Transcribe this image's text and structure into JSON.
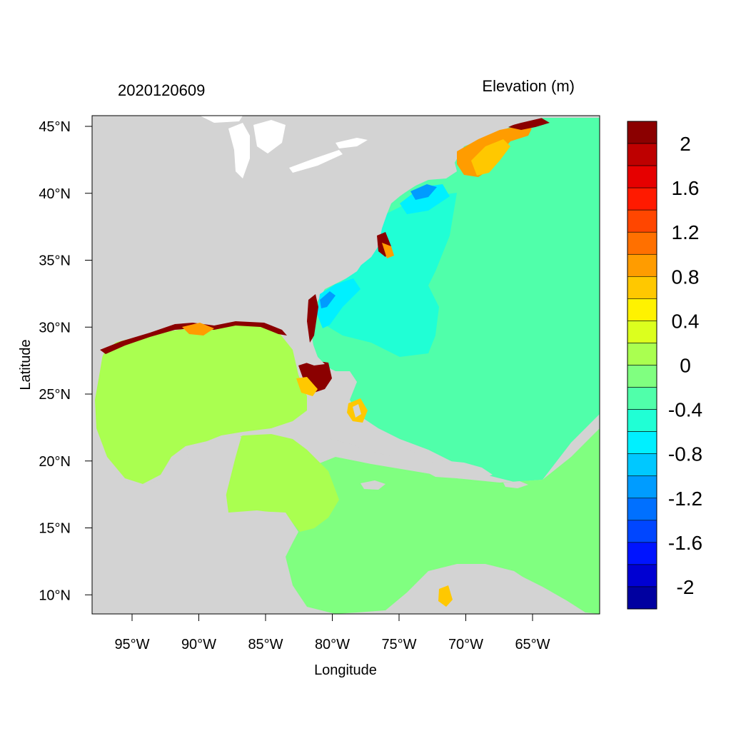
{
  "title_left": "2020120609",
  "title_right": "Elevation (m)",
  "x_axis_label": "Longitude",
  "y_axis_label": "Latitude",
  "x_ticks": [
    {
      "lon": -95,
      "label": "95°W"
    },
    {
      "lon": -90,
      "label": "90°W"
    },
    {
      "lon": -85,
      "label": "85°W"
    },
    {
      "lon": -80,
      "label": "80°W"
    },
    {
      "lon": -75,
      "label": "75°W"
    },
    {
      "lon": -70,
      "label": "70°W"
    },
    {
      "lon": -65,
      "label": "65°W"
    }
  ],
  "y_ticks": [
    {
      "lat": 45,
      "label": "45°N"
    },
    {
      "lat": 40,
      "label": "40°N"
    },
    {
      "lat": 35,
      "label": "35°N"
    },
    {
      "lat": 30,
      "label": "30°N"
    },
    {
      "lat": 25,
      "label": "25°N"
    },
    {
      "lat": 20,
      "label": "20°N"
    },
    {
      "lat": 15,
      "label": "15°N"
    },
    {
      "lat": 10,
      "label": "10°N"
    }
  ],
  "colorbar": {
    "colors_top_to_bottom": [
      "#8b0000",
      "#be0000",
      "#e60000",
      "#ff1a00",
      "#ff4600",
      "#ff7000",
      "#ff9c00",
      "#ffc800",
      "#fff200",
      "#dcff1e",
      "#aaff50",
      "#80ff80",
      "#50ffaa",
      "#20ffd5",
      "#00f0ff",
      "#00c8ff",
      "#009cff",
      "#0070ff",
      "#0046ff",
      "#0014ff",
      "#0000d2",
      "#0000a0"
    ],
    "labels": [
      {
        "value": 2.0,
        "text": "2"
      },
      {
        "value": 1.6,
        "text": "1.6"
      },
      {
        "value": 1.2,
        "text": "1.2"
      },
      {
        "value": 0.8,
        "text": "0.8"
      },
      {
        "value": 0.4,
        "text": "0.4"
      },
      {
        "value": 0.0,
        "text": "0"
      },
      {
        "value": -0.4,
        "text": "-0.4"
      },
      {
        "value": -0.8,
        "text": "-0.8"
      },
      {
        "value": -1.2,
        "text": "-1.2"
      },
      {
        "value": -1.6,
        "text": "-1.6"
      },
      {
        "value": -2.0,
        "text": "-2"
      }
    ]
  },
  "map_colors": {
    "land": "#d3d3d3",
    "lakes": "#ffffff",
    "atlantic": "#50ffaa",
    "caribbean": "#80ff80",
    "gulf": "#aaff50",
    "shelf_low": "#20ffd5",
    "shelf_lower": "#00f0ff",
    "negative_strong": "#009cff",
    "positive_mid": "#ffc800",
    "positive_high": "#ff9c00",
    "surge": "#8b0000"
  }
}
